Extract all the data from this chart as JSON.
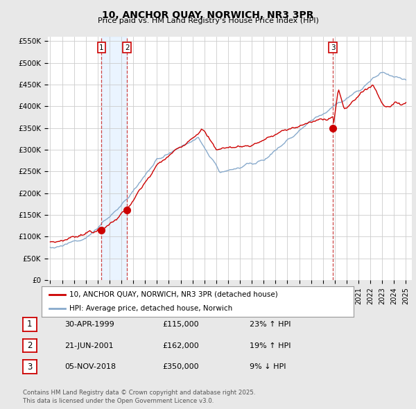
{
  "title": "10, ANCHOR QUAY, NORWICH, NR3 3PR",
  "subtitle": "Price paid vs. HM Land Registry's House Price Index (HPI)",
  "ylim": [
    0,
    560000
  ],
  "yticks": [
    0,
    50000,
    100000,
    150000,
    200000,
    250000,
    300000,
    350000,
    400000,
    450000,
    500000,
    550000
  ],
  "ytick_labels": [
    "£0",
    "£50K",
    "£100K",
    "£150K",
    "£200K",
    "£250K",
    "£300K",
    "£350K",
    "£400K",
    "£450K",
    "£500K",
    "£550K"
  ],
  "bg_color": "#e8e8e8",
  "plot_bg_color": "#ffffff",
  "red_color": "#cc0000",
  "blue_color": "#88aacc",
  "blue_fill_color": "#ddeeff",
  "grid_color": "#cccccc",
  "annotation_line_color": "#cc4444",
  "transactions": [
    {
      "date_num": 1999.33,
      "price": 115000,
      "label": "1"
    },
    {
      "date_num": 2001.47,
      "price": 162000,
      "label": "2"
    },
    {
      "date_num": 2018.85,
      "price": 350000,
      "label": "3"
    }
  ],
  "transaction_table": [
    {
      "num": "1",
      "date": "30-APR-1999",
      "price": "£115,000",
      "hpi": "23% ↑ HPI"
    },
    {
      "num": "2",
      "date": "21-JUN-2001",
      "price": "£162,000",
      "hpi": "19% ↑ HPI"
    },
    {
      "num": "3",
      "date": "05-NOV-2018",
      "price": "£350,000",
      "hpi": "9% ↓ HPI"
    }
  ],
  "legend_entries": [
    "10, ANCHOR QUAY, NORWICH, NR3 3PR (detached house)",
    "HPI: Average price, detached house, Norwich"
  ],
  "footer": "Contains HM Land Registry data © Crown copyright and database right 2025.\nThis data is licensed under the Open Government Licence v3.0."
}
